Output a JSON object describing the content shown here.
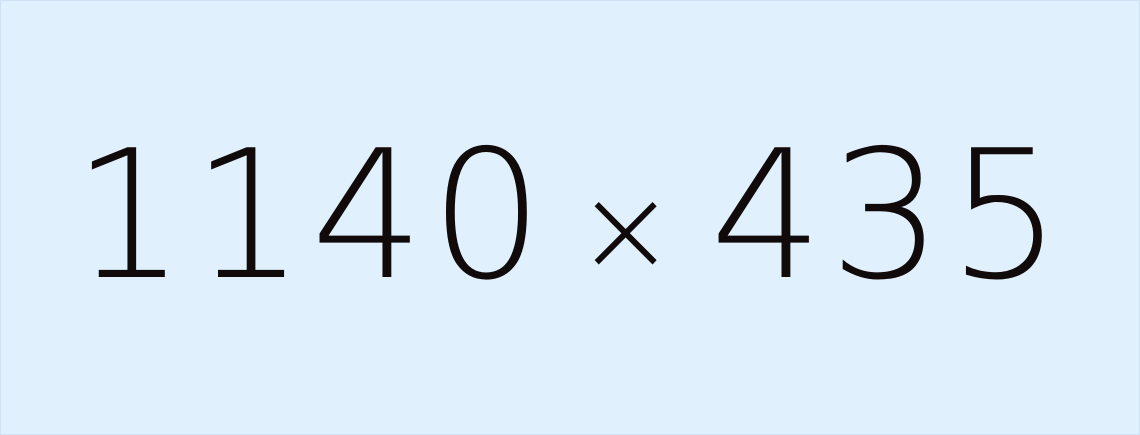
{
  "placeholder": {
    "width_text": "1140",
    "separator": "×",
    "height_text": "435",
    "colors": {
      "background": "#e1f0fd",
      "text": "#110a0a"
    }
  }
}
